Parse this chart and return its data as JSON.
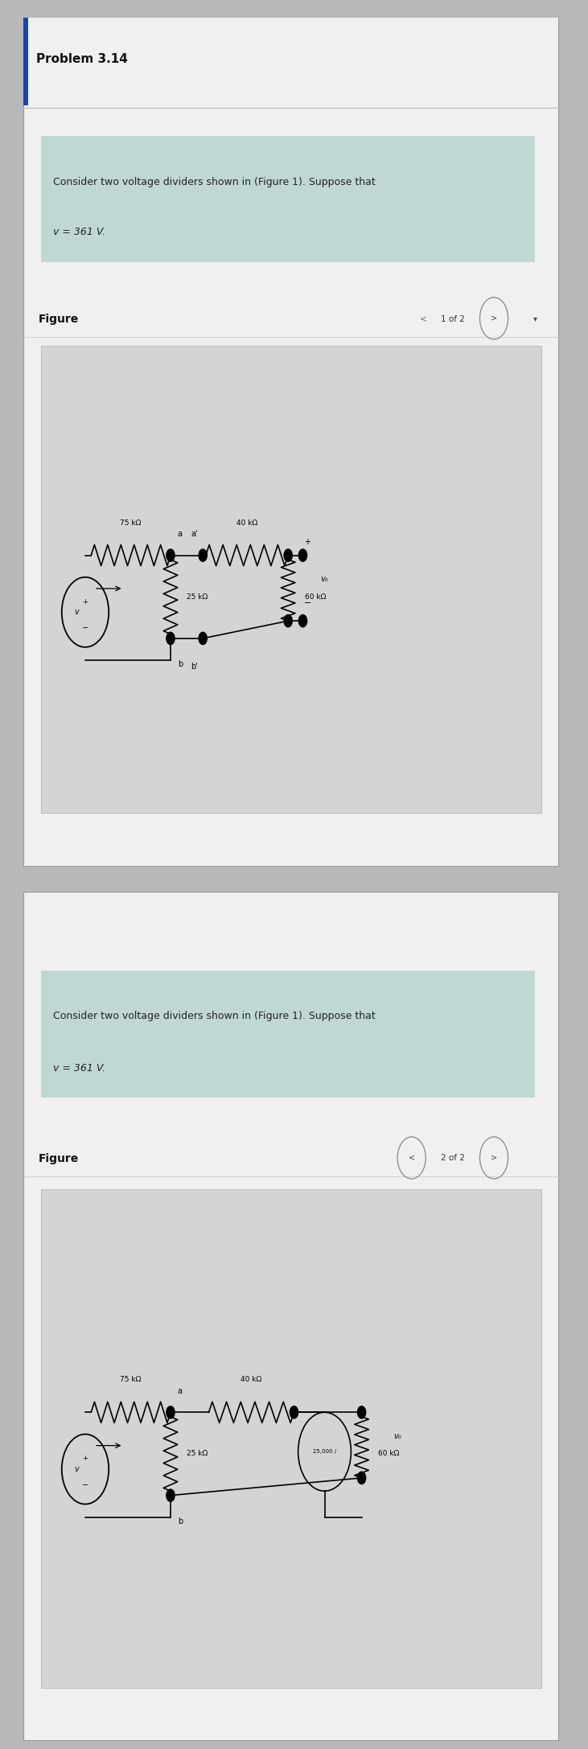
{
  "title": "Problem 3.14",
  "problem_text_line1": "Consider two voltage dividers shown in (Figure 1). Suppose that",
  "problem_text_line2": "v = 361 V.",
  "figure_label": "Figure",
  "fig1_nav": "1 of 2",
  "fig2_nav": "2 of 2",
  "fig1_R1": "75 kΩ",
  "fig1_R2": "25 kΩ",
  "fig1_R3": "40 kΩ",
  "fig1_R4": "60 kΩ",
  "fig1_vout": "v₀",
  "fig2_R1": "75 kΩ",
  "fig2_R2": "25 kΩ",
  "fig2_R3": "40 kΩ",
  "fig2_R4": "60 kΩ",
  "fig2_load": "25,000 /",
  "fig2_vout": "v₀",
  "bg_outer": "#b8b8b8",
  "bg_card": "#f0f0f0",
  "bg_highlight": "#c0d8d4",
  "bg_panel": "#d4d4d4",
  "text_color": "#222222",
  "link_color": "#5588cc",
  "title_fontsize": 11,
  "body_fontsize": 9,
  "small_fontsize": 7.5
}
